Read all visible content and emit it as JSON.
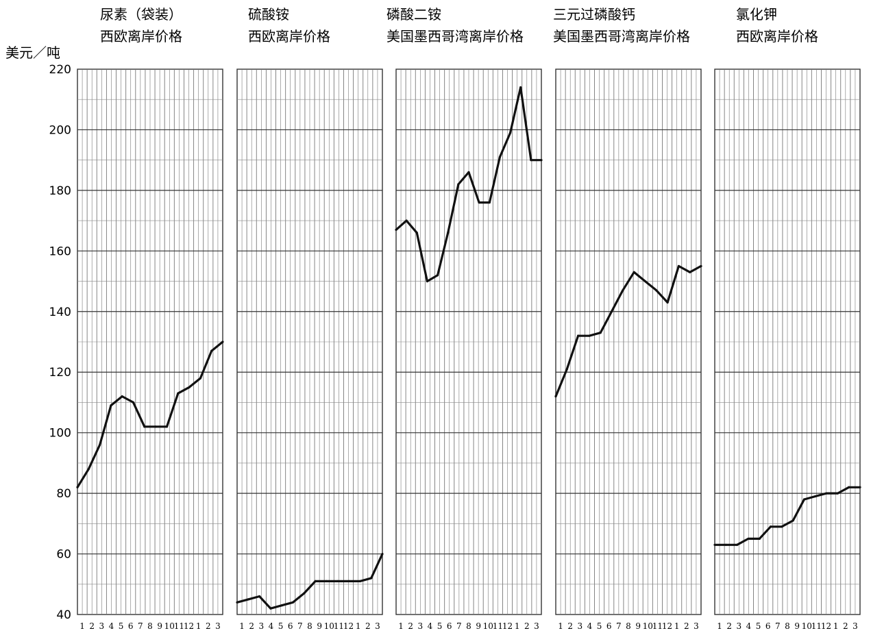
{
  "y_unit": "美元／吨",
  "x_tick_labels": [
    "1",
    "2",
    "3",
    "4",
    "5",
    "6",
    "7",
    "8",
    "9",
    "10",
    "11",
    "12",
    "1",
    "2",
    "3"
  ],
  "chart_data": [
    {
      "type": "line",
      "title": [
        "尿素（袋装）",
        "西欧离岸价格"
      ],
      "ylabel": "美元／吨",
      "ylim": [
        40,
        220
      ],
      "yticks": [
        40,
        60,
        80,
        100,
        120,
        140,
        160,
        180,
        200,
        220
      ],
      "grid": true,
      "series": [
        {
          "values": [
            82,
            88,
            96,
            109,
            112,
            110,
            102,
            102,
            102,
            113,
            115,
            118,
            127,
            130
          ]
        }
      ]
    },
    {
      "type": "line",
      "title": [
        "硫酸铵",
        "西欧离岸价格"
      ],
      "ylim": [
        40,
        220
      ],
      "grid": true,
      "series": [
        {
          "values": [
            44,
            45,
            46,
            42,
            43,
            44,
            47,
            51,
            51,
            51,
            51,
            51,
            52,
            60
          ]
        }
      ]
    },
    {
      "type": "line",
      "title": [
        "磷酸二铵",
        "美国墨西哥湾离岸价格"
      ],
      "ylim": [
        40,
        220
      ],
      "grid": true,
      "series": [
        {
          "values": [
            167,
            170,
            166,
            150,
            152,
            166,
            182,
            186,
            176,
            176,
            191,
            199,
            214,
            190,
            190
          ]
        }
      ]
    },
    {
      "type": "line",
      "title": [
        "三元过磷酸钙",
        "美国墨西哥湾离岸价格"
      ],
      "ylim": [
        40,
        220
      ],
      "grid": true,
      "series": [
        {
          "values": [
            112,
            121,
            132,
            132,
            133,
            140,
            147,
            153,
            150,
            147,
            143,
            155,
            153,
            155
          ]
        }
      ]
    },
    {
      "type": "line",
      "title": [
        "氯化钾",
        "西欧离岸价格"
      ],
      "ylim": [
        40,
        220
      ],
      "grid": true,
      "series": [
        {
          "values": [
            63,
            63,
            63,
            65,
            65,
            69,
            69,
            71,
            78,
            79,
            80,
            80,
            82,
            82
          ]
        }
      ]
    }
  ]
}
